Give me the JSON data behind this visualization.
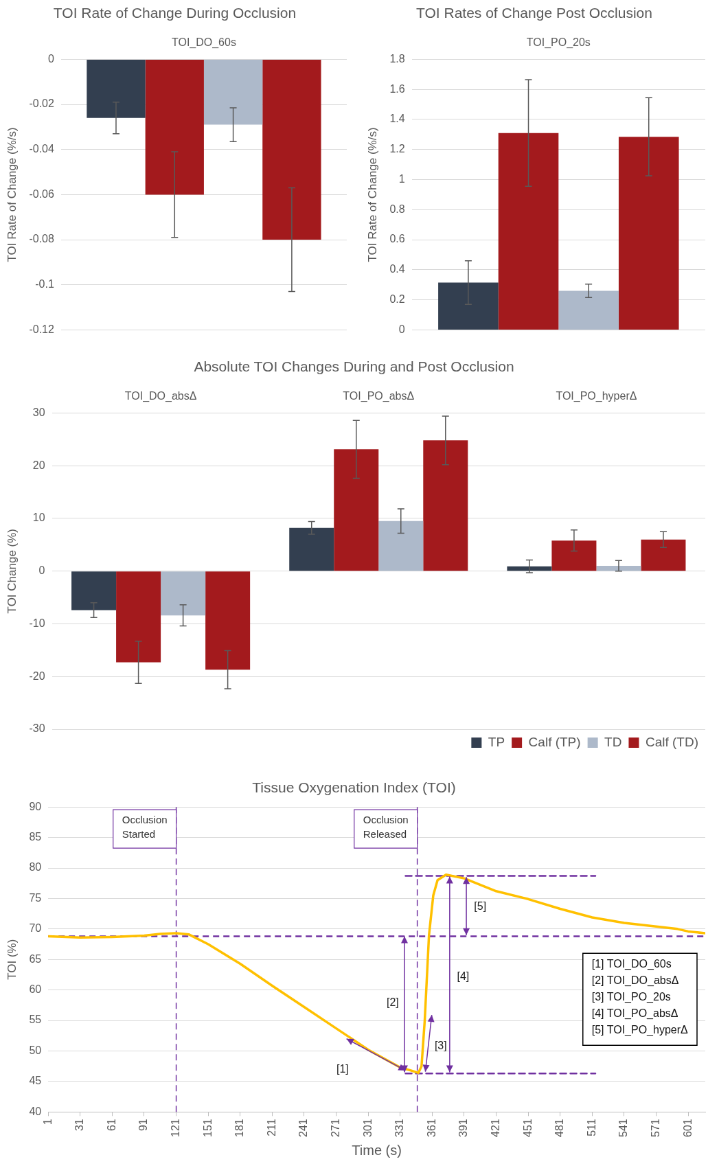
{
  "chart_data": [
    {
      "type": "bar",
      "title": "TOI Rate of Change During Occlusion",
      "ylabel": "TOI Rate of Change (%/s)",
      "categories": [
        "TOI_DO_60s"
      ],
      "series": [
        {
          "color": "#333f50",
          "values": [
            -0.026
          ],
          "errors": [
            0.007
          ]
        },
        {
          "color": "#a31a1d",
          "values": [
            -0.06
          ],
          "errors": [
            0.019
          ]
        },
        {
          "color": "#adb9ca",
          "values": [
            -0.029
          ],
          "errors": [
            0.0075
          ]
        },
        {
          "color": "#a31a1d",
          "values": [
            -0.08
          ],
          "errors": [
            0.023
          ]
        }
      ],
      "ylim": [
        -0.12,
        0
      ],
      "yticks": [
        -0.12,
        -0.1,
        -0.08,
        -0.06,
        -0.04,
        -0.02,
        0
      ],
      "grid": "y"
    },
    {
      "type": "bar",
      "title": "TOI Rates of Change Post Occlusion",
      "ylabel": "TOI Rate of Change (%/s)",
      "categories": [
        "TOI_PO_20s"
      ],
      "series": [
        {
          "color": "#333f50",
          "values": [
            0.315
          ],
          "errors": [
            0.145
          ]
        },
        {
          "color": "#a31a1d",
          "values": [
            1.31
          ],
          "errors": [
            0.355
          ]
        },
        {
          "color": "#adb9ca",
          "values": [
            0.26
          ],
          "errors": [
            0.045
          ]
        },
        {
          "color": "#a31a1d",
          "values": [
            1.285
          ],
          "errors": [
            0.26
          ]
        }
      ],
      "ylim": [
        0,
        1.8
      ],
      "yticks": [
        0,
        0.2,
        0.4,
        0.6,
        0.8,
        1,
        1.2,
        1.4,
        1.6,
        1.8
      ],
      "grid": "y"
    },
    {
      "type": "bar",
      "title": "Absolute TOI Changes During and Post Occlusion",
      "ylabel": "TOI Change (%)",
      "categories": [
        "TOI_DO_absΔ",
        "TOI_PO_absΔ",
        "TOI_PO_hyperΔ"
      ],
      "series": [
        {
          "name": "TP",
          "color": "#333f50",
          "values": [
            -7.4,
            8.2,
            0.9
          ],
          "errors": [
            1.4,
            1.2,
            1.2
          ]
        },
        {
          "name": "Calf (TP)",
          "color": "#a31a1d",
          "values": [
            -17.3,
            23.1,
            5.8
          ],
          "errors": [
            4,
            5.5,
            2
          ]
        },
        {
          "name": "TD",
          "color": "#adb9ca",
          "values": [
            -8.4,
            9.5,
            1
          ],
          "errors": [
            2,
            2.3,
            1
          ]
        },
        {
          "name": "Calf (TD)",
          "color": "#a31a1d",
          "values": [
            -18.7,
            24.8,
            6
          ],
          "errors": [
            3.6,
            4.6,
            1.5
          ]
        }
      ],
      "ylim": [
        -30,
        30
      ],
      "yticks": [
        -30,
        -20,
        -10,
        0,
        10,
        20,
        30
      ],
      "grid": "y",
      "legend": "bottom right"
    },
    {
      "type": "line",
      "title": "Tissue Oxygenation Index (TOI)",
      "xlabel": "Time (s)",
      "ylabel": "TOI (%)",
      "series": [
        {
          "color": "#ffc000",
          "x": [
            1,
            31,
            61,
            91,
            106,
            121,
            133,
            151,
            181,
            211,
            241,
            271,
            301,
            331,
            341,
            348,
            351,
            354,
            358,
            362,
            366,
            374,
            391,
            421,
            451,
            481,
            511,
            541,
            571,
            591,
            601,
            617
          ],
          "values": [
            68.8,
            68.6,
            68.7,
            68.9,
            69.2,
            69.3,
            69.1,
            67.5,
            64.3,
            60.7,
            57.2,
            53.7,
            50.2,
            47.3,
            46.8,
            46.4,
            47.5,
            55,
            69,
            75.5,
            78,
            78.9,
            78.3,
            76.2,
            74.9,
            73.3,
            71.9,
            71,
            70.4,
            70,
            69.6,
            69.3
          ]
        },
        {
          "color": "#7030a0",
          "line_style": "dashed",
          "x": [
            336,
            514
          ],
          "values": [
            78.7,
            78.7
          ]
        },
        {
          "color": "#7030a0",
          "line_style": "dashed",
          "x": [
            336,
            514
          ],
          "values": [
            46.3,
            46.3
          ]
        }
      ],
      "xlim": [
        1,
        617
      ],
      "xticks": [
        1,
        31,
        61,
        91,
        121,
        151,
        181,
        211,
        241,
        271,
        301,
        331,
        361,
        391,
        421,
        451,
        481,
        511,
        541,
        571,
        601
      ],
      "ylim": [
        40,
        90
      ],
      "yticks": [
        40,
        45,
        50,
        55,
        60,
        65,
        70,
        75,
        80,
        85,
        90
      ],
      "grid": "y",
      "ref_lines": [
        {
          "axis": "x",
          "value": 121,
          "label": "Occlusion Started",
          "color": "#7030a0",
          "line_style": "dashed"
        },
        {
          "axis": "x",
          "value": 347,
          "label": "Occlusion Released",
          "color": "#7030a0",
          "line_style": "dashed"
        },
        {
          "axis": "y",
          "value": 68.8,
          "color": "#7030a0",
          "line_style": "dashed"
        }
      ],
      "annotations": [
        "[1] TOI_DO_60s",
        "[2] TOI_DO_absΔ",
        "[3] TOI_PO_20s",
        "[4] TOI_PO_absΔ",
        "[5] TOI_PO_hyperΔ",
        "[1]",
        "[2]",
        "[3]",
        "[4]",
        "[5]"
      ]
    }
  ]
}
